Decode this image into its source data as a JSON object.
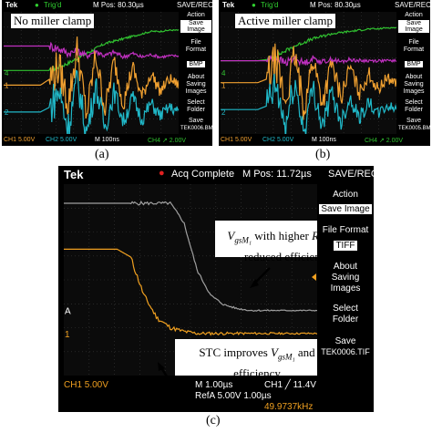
{
  "scopes": {
    "a": {
      "caption": "(a)",
      "label": "No miller clamp",
      "top": {
        "brand": "Tek",
        "status": "Trig'd",
        "mpos": "M Pos: 80.30µs",
        "menu": "SAVE/REC"
      },
      "side": {
        "action_title": "Action",
        "action_btn": "Save Image",
        "format_title": "File Format",
        "format_btn": "BMP",
        "about": "About Saving Images",
        "folder": "Select Folder",
        "save_title": "Save",
        "save_file": "TEK0006.BMP"
      },
      "bottom": {
        "ch1": "CH1  5.00V",
        "ch2": "CH2  5.00V",
        "time": "M 100ns",
        "ch4": "CH4 ↗ 2.00V"
      },
      "markers": {
        "m4": "4",
        "m1": "1",
        "m2": "2"
      },
      "colors": {
        "ch1": "#f0a030",
        "ch2": "#20b8c8",
        "ch3": "#c030c0",
        "ch4": "#30c030"
      }
    },
    "b": {
      "caption": "(b)",
      "label": "Active miller clamp",
      "top": {
        "brand": "Tek",
        "status": "Trig'd",
        "mpos": "M Pos: 80.30µs",
        "menu": "SAVE/REC"
      },
      "side": {
        "action_title": "Action",
        "action_btn": "Save Image",
        "format_title": "File Format",
        "format_btn": "BMP",
        "about": "About Saving Images",
        "folder": "Select Folder",
        "save_title": "Save",
        "save_file": "TEK0005.BMP"
      },
      "bottom": {
        "ch1": "CH1  5.00V",
        "ch2": "CH2  5.00V",
        "time": "M 100ns",
        "ch4": "CH4 ↗ 2.00V"
      },
      "markers": {
        "m4": "4",
        "m1": "1",
        "m2": "2"
      }
    },
    "c": {
      "caption": "(c)",
      "top": {
        "brand": "Tek",
        "status": "Acq Complete",
        "mpos": "M Pos: 11.72µs",
        "menu": "SAVE/REC"
      },
      "side": {
        "action_title": "Action",
        "action_btn": "Save Image",
        "format_title": "File Format",
        "format_btn": "TIFF",
        "about": "About Saving Images",
        "folder": "Select Folder",
        "save_title": "Save",
        "save_file": "TEK0006.TIF"
      },
      "bottom": {
        "ch1": "CH1  5.00V",
        "time": "M 1.00µs",
        "trig": "CH1 ╱ 11.4V",
        "refa": "RefA 5.00V 1.00µs",
        "freq": "49.9737kHz"
      },
      "markers": {
        "mA": "A",
        "m1": "1"
      },
      "annotation_top_1": "V",
      "annotation_top_sub": "gsM₁",
      "annotation_top_2": " with higher ",
      "annotation_top_3": "R",
      "annotation_top_sub2": "ext",
      "annotation_top_4": " and",
      "annotation_top_line2": "reduced efficiency",
      "annotation_bottom_1": "STC improves ",
      "annotation_bottom_2": "V",
      "annotation_bottom_sub": "gsM₁",
      "annotation_bottom_3": " and",
      "annotation_bottom_line2": "efficiency",
      "colors": {
        "ch1": "#f0a020",
        "ref": "#a0a0a0"
      }
    }
  },
  "chart_data": [
    {
      "type": "line",
      "panel": "a",
      "title": "No miller clamp",
      "series": [
        {
          "name": "CH4",
          "values": [
            0.52,
            0.52,
            0.52,
            0.52,
            0.52,
            0.52,
            0.55,
            0.58,
            0.62,
            0.66,
            0.7,
            0.74,
            0.76,
            0.78,
            0.8,
            0.82,
            0.84,
            0.84,
            0.85,
            0.85
          ]
        },
        {
          "name": "CH3",
          "values": [
            0.72,
            0.72,
            0.72,
            0.72,
            0.72,
            0.72,
            0.7,
            0.66,
            0.68,
            0.64,
            0.68,
            0.64,
            0.67,
            0.63,
            0.66,
            0.63,
            0.65,
            0.63,
            0.64,
            0.64
          ]
        },
        {
          "name": "CH1",
          "values": [
            0.4,
            0.4,
            0.4,
            0.4,
            0.4,
            0.45,
            0.55,
            0.25,
            0.7,
            0.15,
            0.65,
            0.2,
            0.6,
            0.25,
            0.55,
            0.3,
            0.5,
            0.35,
            0.45,
            0.4
          ]
        },
        {
          "name": "CH2",
          "values": [
            0.18,
            0.18,
            0.18,
            0.18,
            0.18,
            0.22,
            0.35,
            0.05,
            0.45,
            0.0,
            0.4,
            0.05,
            0.35,
            0.1,
            0.3,
            0.12,
            0.25,
            0.15,
            0.22,
            0.18
          ]
        }
      ],
      "bottom_labels": [
        "CH1 5.00V",
        "CH2 5.00V",
        "M 100ns",
        "CH4 2.00V"
      ]
    },
    {
      "type": "line",
      "panel": "b",
      "title": "Active miller clamp",
      "series": [
        {
          "name": "CH4",
          "values": [
            0.6,
            0.6,
            0.6,
            0.6,
            0.6,
            0.61,
            0.64,
            0.68,
            0.72,
            0.75,
            0.78,
            0.8,
            0.82,
            0.83,
            0.84,
            0.85,
            0.86,
            0.86,
            0.87,
            0.87
          ]
        },
        {
          "name": "CH3",
          "values": [
            0.6,
            0.6,
            0.6,
            0.6,
            0.6,
            0.6,
            0.62,
            0.58,
            0.62,
            0.58,
            0.62,
            0.59,
            0.61,
            0.59,
            0.61,
            0.6,
            0.6,
            0.6,
            0.6,
            0.6
          ]
        },
        {
          "name": "CH1",
          "values": [
            0.42,
            0.42,
            0.42,
            0.42,
            0.42,
            0.45,
            0.6,
            0.25,
            0.65,
            0.2,
            0.62,
            0.25,
            0.58,
            0.3,
            0.55,
            0.33,
            0.5,
            0.36,
            0.46,
            0.42
          ]
        },
        {
          "name": "CH2",
          "values": [
            0.2,
            0.2,
            0.2,
            0.2,
            0.2,
            0.23,
            0.38,
            0.05,
            0.42,
            0.02,
            0.38,
            0.06,
            0.34,
            0.1,
            0.3,
            0.13,
            0.26,
            0.16,
            0.23,
            0.2
          ]
        }
      ],
      "bottom_labels": [
        "CH1 5.00V",
        "CH2 5.00V",
        "M 100ns",
        "CH4 2.00V"
      ]
    },
    {
      "type": "line",
      "panel": "c",
      "series": [
        {
          "name": "RefA",
          "values": [
            0.9,
            0.9,
            0.9,
            0.9,
            0.9,
            0.9,
            0.9,
            0.9,
            0.9,
            0.8,
            0.55,
            0.42,
            0.37,
            0.35,
            0.34,
            0.34,
            0.34,
            0.34,
            0.34,
            0.34
          ]
        },
        {
          "name": "CH1",
          "values": [
            0.66,
            0.66,
            0.66,
            0.66,
            0.66,
            0.62,
            0.42,
            0.3,
            0.25,
            0.23,
            0.22,
            0.22,
            0.22,
            0.22,
            0.22,
            0.22,
            0.22,
            0.22,
            0.22,
            0.22
          ]
        }
      ],
      "bottom_labels": [
        "CH1 5.00V",
        "M 1.00µs",
        "CH1 11.4V",
        "RefA 5.00V 1.00µs",
        "49.9737kHz"
      ]
    }
  ]
}
